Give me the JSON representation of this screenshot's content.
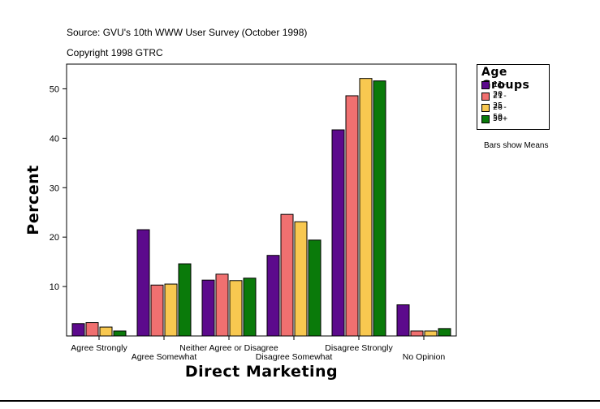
{
  "header": {
    "source": "Source: GVU's 10th WWW User Survey (October 1998)",
    "copyright": "Copyright 1998 GTRC"
  },
  "legend": {
    "title": "Age Groups",
    "items": [
      {
        "label": "11-20",
        "color": "#5c0a8c"
      },
      {
        "label": "21-25",
        "color": "#f07070"
      },
      {
        "label": "26-50",
        "color": "#f8c850"
      },
      {
        "label": "50+",
        "color": "#0a7a0a"
      }
    ]
  },
  "note": "Bars show Means",
  "chart_data": {
    "type": "bar",
    "xlabel": "Direct Marketing",
    "ylabel": "Percent",
    "ylim": [
      0,
      55
    ],
    "yticks": [
      10,
      20,
      30,
      40,
      50
    ],
    "grid": false,
    "legend_position": "right",
    "categories": [
      "Agree Strongly",
      "Agree Somewhat",
      "Neither Agree or Disagree",
      "Disagree Somewhat",
      "Disagree Strongly",
      "No Opinion"
    ],
    "series": [
      {
        "name": "11-20",
        "color": "#5c0a8c",
        "values": [
          2.5,
          21.5,
          11.3,
          16.3,
          41.7,
          6.3
        ]
      },
      {
        "name": "21-25",
        "color": "#f07070",
        "values": [
          2.7,
          10.3,
          12.5,
          24.6,
          48.6,
          1.0
        ]
      },
      {
        "name": "26-50",
        "color": "#f8c850",
        "values": [
          1.8,
          10.5,
          11.2,
          23.1,
          52.1,
          1.0
        ]
      },
      {
        "name": "50+",
        "color": "#0a7a0a",
        "values": [
          1.0,
          14.6,
          11.7,
          19.4,
          51.6,
          1.5
        ]
      }
    ]
  }
}
